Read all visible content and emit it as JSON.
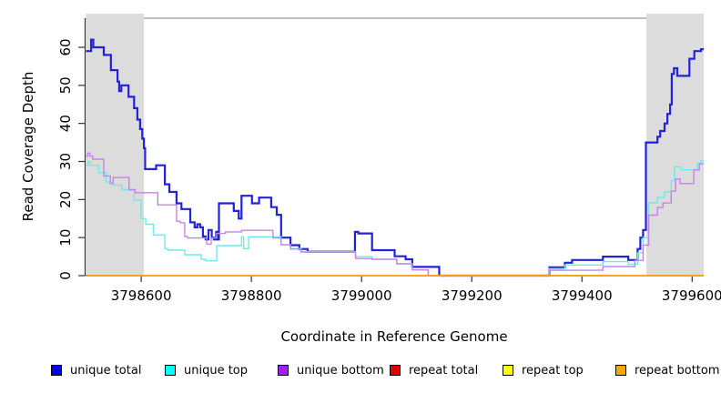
{
  "figure": {
    "x_axis_title": "Coordinate in Reference Genome",
    "y_axis_title": "Read Coverage Depth"
  },
  "legend": {
    "items": [
      {
        "label": "unique total",
        "color": "#0000F0"
      },
      {
        "label": "unique top",
        "color": "#00FFFF"
      },
      {
        "label": "unique bottom",
        "color": "#A020F0"
      },
      {
        "label": "repeat total",
        "color": "#E00000"
      },
      {
        "label": "repeat top",
        "color": "#FFFF00"
      },
      {
        "label": "repeat bottom",
        "color": "#FFA500"
      }
    ]
  },
  "chart_data": {
    "type": "line",
    "step": true,
    "xlabel": "Coordinate in Reference Genome",
    "ylabel": "Read Coverage Depth",
    "xlim": [
      3798499,
      3799621
    ],
    "ylim": [
      0,
      67.5
    ],
    "x_ticks": [
      3798600,
      3798800,
      3799000,
      3799200,
      3799400,
      3799600
    ],
    "y_ticks": [
      0,
      10,
      20,
      30,
      40,
      50,
      60
    ],
    "grid": false,
    "shaded_regions": [
      {
        "x0": 3798500,
        "x1": 3798605,
        "color": "#DCDCDC"
      },
      {
        "x0": 3799517,
        "x1": 3799621,
        "color": "#DCDCDC"
      }
    ],
    "series": [
      {
        "name": "unique total",
        "legend_color": "#0000F0",
        "line_color": "#2222D8",
        "line_width": 2.2,
        "points": [
          [
            3798500,
            59
          ],
          [
            3798509,
            62
          ],
          [
            3798513,
            60
          ],
          [
            3798532,
            58
          ],
          [
            3798545,
            54
          ],
          [
            3798557,
            51
          ],
          [
            3798560,
            48.5
          ],
          [
            3798564,
            50
          ],
          [
            3798577,
            47
          ],
          [
            3798587,
            44
          ],
          [
            3798593,
            41
          ],
          [
            3798598,
            38.5
          ],
          [
            3798602,
            36
          ],
          [
            3798605,
            33.5
          ],
          [
            3798607,
            28
          ],
          [
            3798627,
            29
          ],
          [
            3798643,
            24
          ],
          [
            3798651,
            22
          ],
          [
            3798664,
            19
          ],
          [
            3798673,
            17.5
          ],
          [
            3798689,
            14
          ],
          [
            3798697,
            12.7
          ],
          [
            3798702,
            13.5
          ],
          [
            3798707,
            12.7
          ],
          [
            3798712,
            10.3
          ],
          [
            3798717,
            9.5
          ],
          [
            3798722,
            12
          ],
          [
            3798728,
            10
          ],
          [
            3798732,
            9.5
          ],
          [
            3798736,
            11.5
          ],
          [
            3798739,
            9.5
          ],
          [
            3798741,
            19
          ],
          [
            3798768,
            17
          ],
          [
            3798777,
            15
          ],
          [
            3798782,
            21
          ],
          [
            3798801,
            19
          ],
          [
            3798814,
            20.5
          ],
          [
            3798836,
            18
          ],
          [
            3798846,
            16
          ],
          [
            3798854,
            10
          ],
          [
            3798871,
            8
          ],
          [
            3798887,
            7
          ],
          [
            3798902,
            6.3
          ],
          [
            3798988,
            11.5
          ],
          [
            3798994,
            11.1
          ],
          [
            3799019,
            6.7
          ],
          [
            3799060,
            5.1
          ],
          [
            3799080,
            4.3
          ],
          [
            3799092,
            2.3
          ],
          [
            3799141,
            0
          ],
          [
            3799341,
            2.2
          ],
          [
            3799369,
            3.4
          ],
          [
            3799382,
            4.1
          ],
          [
            3799438,
            5
          ],
          [
            3799484,
            4.1
          ],
          [
            3799501,
            7
          ],
          [
            3799506,
            10
          ],
          [
            3799511,
            12
          ],
          [
            3799516,
            35
          ],
          [
            3799537,
            36.5
          ],
          [
            3799542,
            38
          ],
          [
            3799550,
            40
          ],
          [
            3799555,
            42.5
          ],
          [
            3799560,
            45
          ],
          [
            3799563,
            53
          ],
          [
            3799567,
            54.5
          ],
          [
            3799573,
            52.5
          ],
          [
            3799595,
            57
          ],
          [
            3799604,
            59
          ],
          [
            3799616,
            59.5
          ],
          [
            3799621,
            59.5
          ]
        ]
      },
      {
        "name": "unique top",
        "legend_color": "#00FFFF",
        "line_color": "#6FE9E9",
        "line_width": 1.4,
        "points": [
          [
            3798500,
            29
          ],
          [
            3798504,
            30
          ],
          [
            3798508,
            29
          ],
          [
            3798523,
            27
          ],
          [
            3798536,
            24.6
          ],
          [
            3798549,
            23.8
          ],
          [
            3798565,
            22.6
          ],
          [
            3798587,
            19.9
          ],
          [
            3798600,
            15
          ],
          [
            3798608,
            13.5
          ],
          [
            3798622,
            10.7
          ],
          [
            3798643,
            7.1
          ],
          [
            3798648,
            6.7
          ],
          [
            3798679,
            5.5
          ],
          [
            3798709,
            4.3
          ],
          [
            3798717,
            3.9
          ],
          [
            3798737,
            7.9
          ],
          [
            3798782,
            10.2
          ],
          [
            3798786,
            7.1
          ],
          [
            3798795,
            10.2
          ],
          [
            3798854,
            8.1
          ],
          [
            3798871,
            7.1
          ],
          [
            3798890,
            6.3
          ],
          [
            3798989,
            5
          ],
          [
            3799019,
            4.3
          ],
          [
            3799064,
            3.1
          ],
          [
            3799092,
            1.5
          ],
          [
            3799121,
            0
          ],
          [
            3799341,
            1.8
          ],
          [
            3799369,
            2.8
          ],
          [
            3799438,
            3.7
          ],
          [
            3799484,
            3
          ],
          [
            3799501,
            6
          ],
          [
            3799511,
            10
          ],
          [
            3799521,
            19.1
          ],
          [
            3799537,
            20.6
          ],
          [
            3799550,
            22
          ],
          [
            3799562,
            25
          ],
          [
            3799568,
            28.6
          ],
          [
            3799580,
            27.8
          ],
          [
            3799610,
            29.5
          ],
          [
            3799616,
            30.2
          ],
          [
            3799621,
            30.2
          ]
        ]
      },
      {
        "name": "unique bottom",
        "legend_color": "#A020F0",
        "line_color": "#C583E6",
        "line_width": 1.4,
        "points": [
          [
            3798500,
            31.4
          ],
          [
            3798503,
            32.2
          ],
          [
            3798507,
            31.4
          ],
          [
            3798512,
            30.6
          ],
          [
            3798532,
            26.2
          ],
          [
            3798544,
            24.2
          ],
          [
            3798549,
            25.8
          ],
          [
            3798578,
            22.6
          ],
          [
            3798589,
            21.8
          ],
          [
            3798630,
            18.6
          ],
          [
            3798664,
            14.3
          ],
          [
            3798671,
            13.9
          ],
          [
            3798679,
            10.3
          ],
          [
            3798684,
            9.9
          ],
          [
            3798719,
            8.3
          ],
          [
            3798727,
            9.9
          ],
          [
            3798737,
            11.1
          ],
          [
            3798753,
            11.5
          ],
          [
            3798782,
            11.9
          ],
          [
            3798839,
            9.9
          ],
          [
            3798854,
            8.1
          ],
          [
            3798871,
            7
          ],
          [
            3798890,
            6.2
          ],
          [
            3798989,
            4.5
          ],
          [
            3799019,
            4.3
          ],
          [
            3799064,
            3.1
          ],
          [
            3799092,
            1.5
          ],
          [
            3799121,
            0
          ],
          [
            3799341,
            1.4
          ],
          [
            3799438,
            2.4
          ],
          [
            3799496,
            4
          ],
          [
            3799511,
            8
          ],
          [
            3799521,
            15.9
          ],
          [
            3799537,
            17.9
          ],
          [
            3799547,
            19.1
          ],
          [
            3799562,
            22.2
          ],
          [
            3799570,
            25.4
          ],
          [
            3799578,
            24.2
          ],
          [
            3799603,
            27.8
          ],
          [
            3799613,
            29.4
          ],
          [
            3799621,
            29.4
          ]
        ]
      },
      {
        "name": "repeat total",
        "legend_color": "#E00000",
        "line_color": "#E00000",
        "line_width": 1.2,
        "points": [
          [
            3798500,
            0
          ],
          [
            3799621,
            0
          ]
        ]
      },
      {
        "name": "repeat top",
        "legend_color": "#FFFF00",
        "line_color": "#FFFF00",
        "line_width": 1.2,
        "points": [
          [
            3798500,
            0
          ],
          [
            3799621,
            0
          ]
        ]
      },
      {
        "name": "repeat bottom",
        "legend_color": "#FFA500",
        "line_color": "#FFA500",
        "line_width": 1.6,
        "points": [
          [
            3798500,
            0
          ],
          [
            3799621,
            0
          ]
        ]
      }
    ]
  },
  "colors": {
    "shaded_region": "#DCDCDC",
    "plot_border": "#999999",
    "axis": "#333333",
    "tick_label": "#000000"
  }
}
